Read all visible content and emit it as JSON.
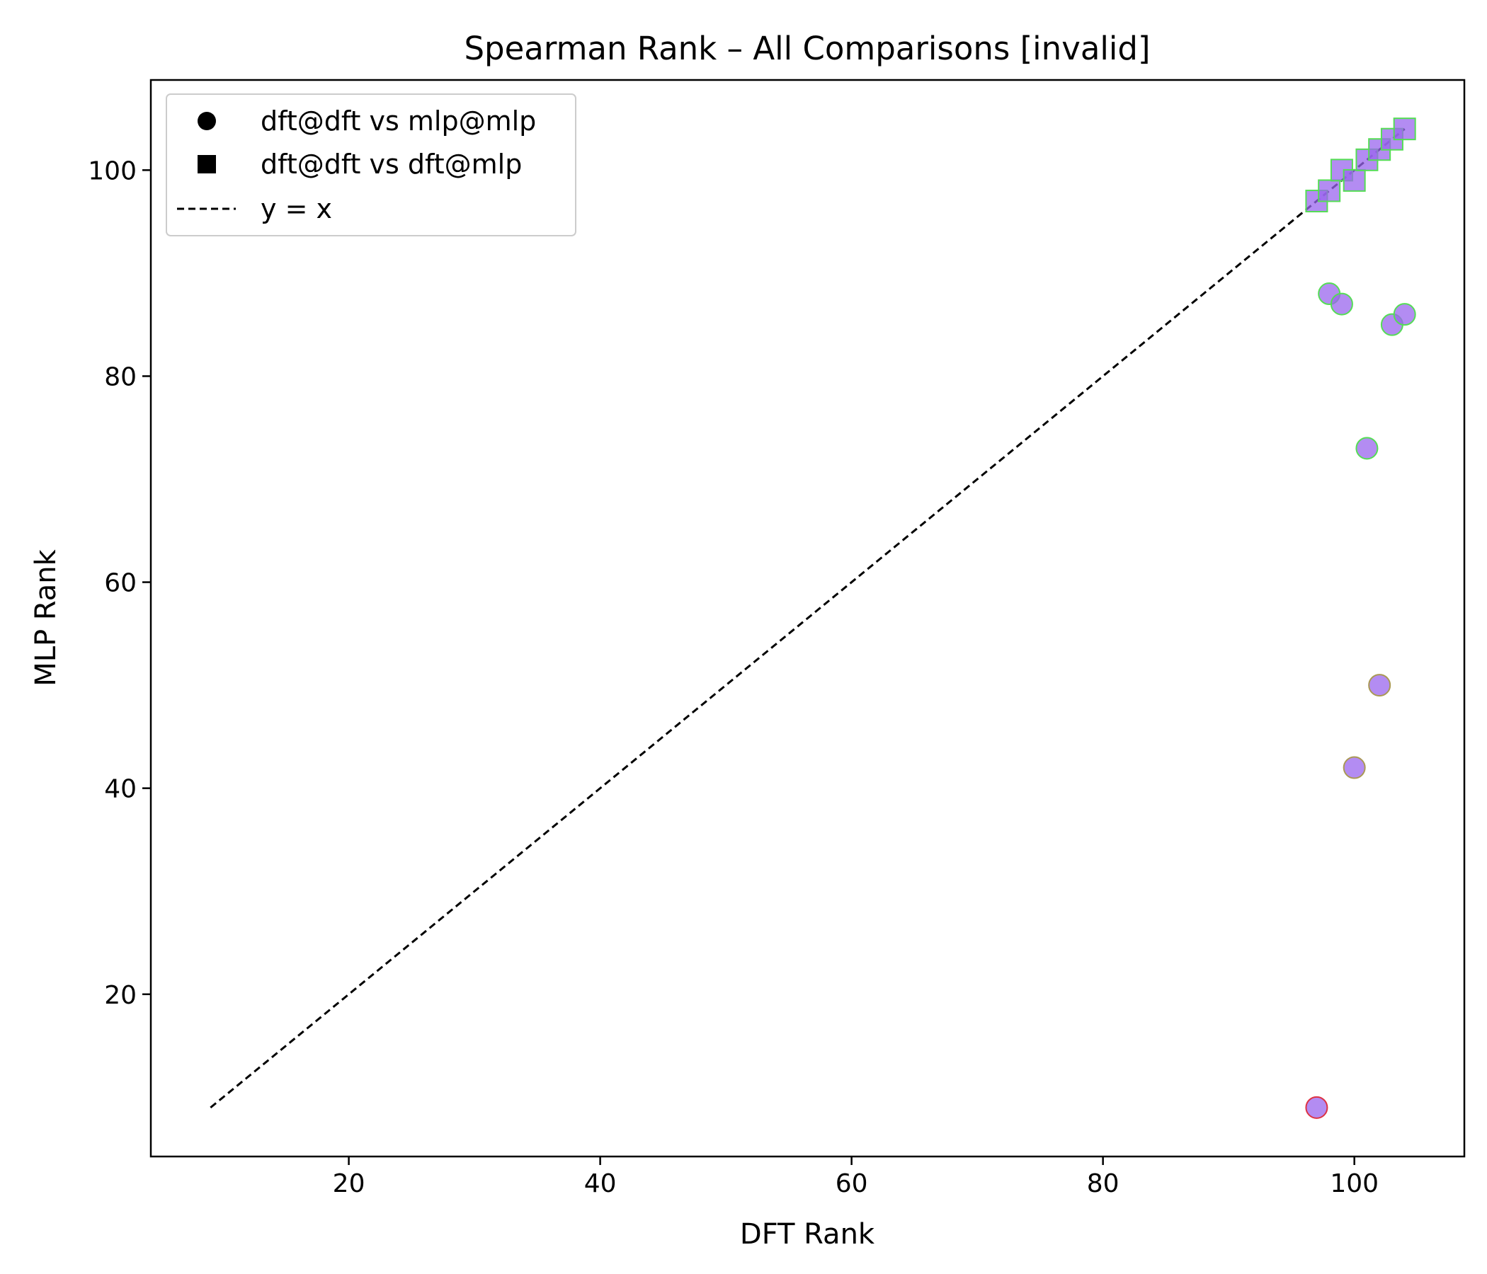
{
  "chart_data": {
    "type": "scatter",
    "title": "Spearman Rank – All Comparisons [invalid]",
    "xlabel": "DFT Rank",
    "ylabel": "MLP Rank",
    "xlim": [
      4.25,
      108.75
    ],
    "ylim": [
      4.25,
      108.75
    ],
    "xticks": [
      20,
      40,
      60,
      80,
      100
    ],
    "yticks": [
      20,
      40,
      60,
      80,
      100
    ],
    "grid": false,
    "legend_position": "upper left",
    "colors": {
      "fill": "#9966ee",
      "edge_green": "#55dd55",
      "edge_red": "#dd3344",
      "edge_olive": "#aa9955",
      "reference_line": "#000000"
    },
    "series": [
      {
        "name": "dft@dft vs mlp@mlp",
        "marker": "circle",
        "points": [
          {
            "x": 97,
            "y": 9,
            "edge": "edge_red"
          },
          {
            "x": 98,
            "y": 88,
            "edge": "edge_green"
          },
          {
            "x": 99,
            "y": 87,
            "edge": "edge_green"
          },
          {
            "x": 100,
            "y": 42,
            "edge": "edge_olive"
          },
          {
            "x": 101,
            "y": 73,
            "edge": "edge_green"
          },
          {
            "x": 102,
            "y": 50,
            "edge": "edge_olive"
          },
          {
            "x": 103,
            "y": 85,
            "edge": "edge_green"
          },
          {
            "x": 104,
            "y": 86,
            "edge": "edge_green"
          }
        ]
      },
      {
        "name": "dft@dft vs dft@mlp",
        "marker": "square",
        "points": [
          {
            "x": 97,
            "y": 97,
            "edge": "edge_green"
          },
          {
            "x": 98,
            "y": 98,
            "edge": "edge_green"
          },
          {
            "x": 99,
            "y": 100,
            "edge": "edge_green"
          },
          {
            "x": 100,
            "y": 99,
            "edge": "edge_green"
          },
          {
            "x": 101,
            "y": 101,
            "edge": "edge_green"
          },
          {
            "x": 102,
            "y": 102,
            "edge": "edge_green"
          },
          {
            "x": 103,
            "y": 103,
            "edge": "edge_green"
          },
          {
            "x": 104,
            "y": 104,
            "edge": "edge_green"
          }
        ]
      }
    ],
    "reference_line": {
      "name": "y = x",
      "style": "dashed",
      "from": 9,
      "to": 104
    }
  }
}
